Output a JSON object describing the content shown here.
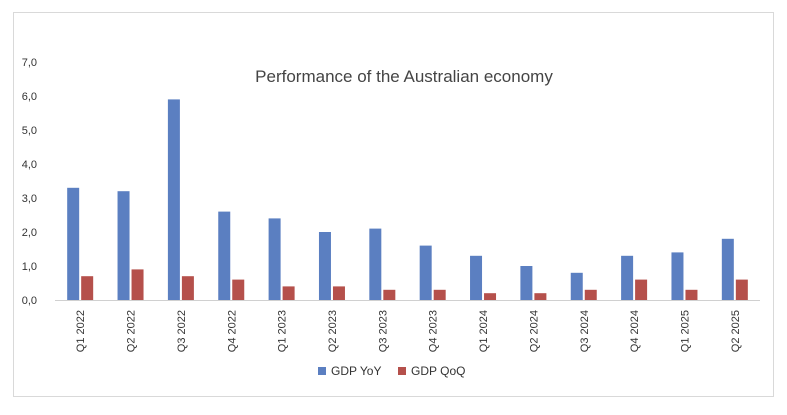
{
  "chart_data": {
    "type": "bar",
    "title": "Performance of the Australian economy",
    "xlabel": "",
    "ylabel": "",
    "ylim": [
      0,
      7
    ],
    "yticks": [
      "0,0",
      "1,0",
      "2,0",
      "3,0",
      "4,0",
      "5,0",
      "6,0",
      "7,0"
    ],
    "grid": false,
    "legend": "bottom",
    "categories": [
      "Q1 2022",
      "Q2 2022",
      "Q3 2022",
      "Q4 2022",
      "Q1 2023",
      "Q2 2023",
      "Q3 2023",
      "Q4 2023",
      "Q1 2024",
      "Q2 2024",
      "Q3 2024",
      "Q4 2024",
      "Q1 2025",
      "Q2 2025"
    ],
    "series": [
      {
        "name": "GDP YoY",
        "color": "#5b7fc1",
        "values": [
          3.3,
          3.2,
          5.9,
          2.6,
          2.4,
          2.0,
          2.1,
          1.6,
          1.3,
          1.0,
          0.8,
          1.3,
          1.4,
          1.8
        ]
      },
      {
        "name": "GDP QoQ",
        "color": "#b5504b",
        "values": [
          0.7,
          0.9,
          0.7,
          0.6,
          0.4,
          0.4,
          0.3,
          0.3,
          0.2,
          0.2,
          0.3,
          0.6,
          0.3,
          0.6
        ]
      }
    ]
  }
}
